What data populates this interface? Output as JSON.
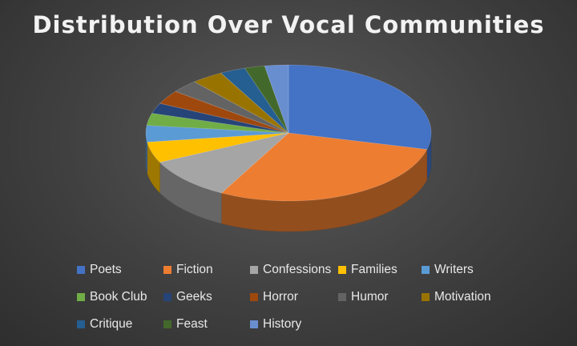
{
  "chart_data": {
    "type": "pie",
    "title": "Distribution Over Vocal Communities",
    "legend_position": "bottom",
    "categories": [
      "Poets",
      "Fiction",
      "Confessions",
      "Families",
      "Writers",
      "Book Club",
      "Geeks",
      "Horror",
      "Humor",
      "Motivation",
      "Critique",
      "Feast",
      "History"
    ],
    "values": [
      28.0,
      28.0,
      9.8,
      4.8,
      3.8,
      2.8,
      2.4,
      3.2,
      3.0,
      3.5,
      2.8,
      2.2,
      2.6
    ],
    "colors": [
      "#4472c4",
      "#ed7d31",
      "#a5a5a5",
      "#ffc000",
      "#5b9bd5",
      "#70ad47",
      "#264478",
      "#9e480e",
      "#636363",
      "#997300",
      "#255e91",
      "#43682b",
      "#698ed0"
    ]
  }
}
